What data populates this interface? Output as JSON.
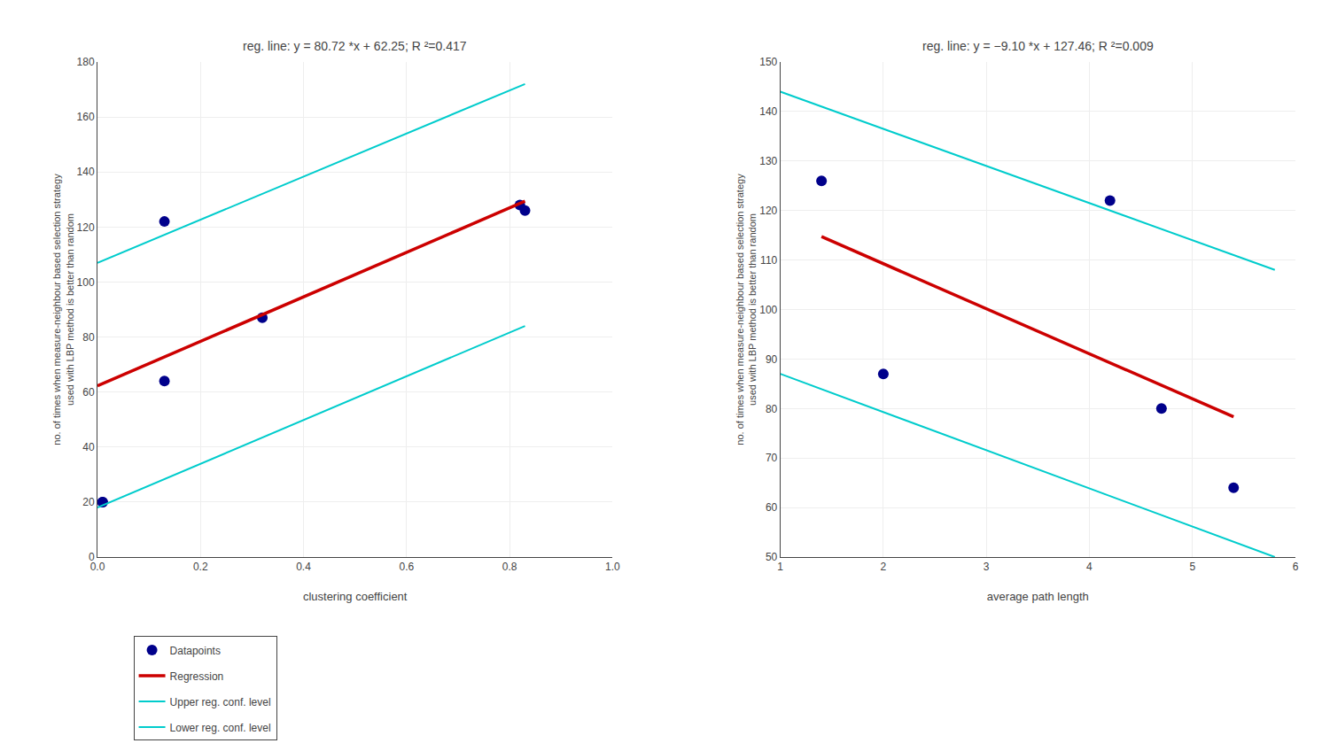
{
  "chart_data": [
    {
      "type": "scatter",
      "title": "reg. line: y = 80.72 *x + 62.25; R ²=0.417",
      "x_label": "clustering coefficient",
      "y_label": "no. of times when measure-neighbour based selection strategy\nused with LBP method is better than random",
      "xlim": [
        0,
        1
      ],
      "ylim": [
        0,
        180
      ],
      "xticks": [
        {
          "value": 0,
          "label": "0.0"
        },
        0.2,
        0.4,
        0.6,
        0.8,
        {
          "value": 1.0,
          "label": "1.0"
        }
      ],
      "yticks": [
        0,
        20,
        40,
        60,
        80,
        100,
        120,
        140,
        160,
        180
      ],
      "grid": true,
      "legend": "bottom",
      "series": [
        {
          "name": "Datapoints",
          "type": "scatter",
          "marker": "circle",
          "color": "#00008B",
          "x": [
            0.01,
            0.01,
            0.13,
            0.13,
            0.32,
            0.82,
            0.83
          ],
          "values": [
            20,
            20,
            122,
            64,
            87,
            128,
            126
          ]
        },
        {
          "name": "Regression",
          "type": "line",
          "color": "#CC0000",
          "x": [
            0.0,
            0.83
          ],
          "values": [
            62.25,
            129.37
          ]
        },
        {
          "name": "Upper reg. conf. level",
          "type": "line",
          "color": "#00CCCC",
          "x": [
            0.0,
            0.83
          ],
          "values": [
            107.0,
            172.0
          ]
        },
        {
          "name": "Lower reg. conf. level",
          "type": "line",
          "color": "#00CCCC",
          "x": [
            0.0,
            0.83
          ],
          "values": [
            18.0,
            84.0
          ]
        }
      ]
    },
    {
      "type": "scatter",
      "title": "reg. line: y = −9.10 *x + 127.46; R ²=0.009",
      "x_label": "average path length",
      "y_label": "no. of times when measure-neighbour based selection strategy\nused with LBP method is better than random",
      "xlim": [
        1,
        6
      ],
      "ylim": [
        50,
        150
      ],
      "xticks": [
        1,
        2,
        3,
        4,
        5,
        6
      ],
      "yticks": [
        50,
        60,
        70,
        80,
        90,
        100,
        110,
        120,
        130,
        140,
        150
      ],
      "grid": true,
      "legend": false,
      "series": [
        {
          "name": "Datapoints",
          "type": "scatter",
          "marker": "circle",
          "color": "#00008B",
          "x": [
            1.4,
            2.0,
            4.2,
            4.7,
            5.4
          ],
          "values": [
            126,
            87,
            122,
            80,
            64
          ]
        },
        {
          "name": "Regression",
          "type": "line",
          "color": "#CC0000",
          "x": [
            1.4,
            5.4
          ],
          "values": [
            114.72,
            78.32
          ]
        },
        {
          "name": "Upper reg. conf. level",
          "type": "line",
          "color": "#00CCCC",
          "x": [
            1.0,
            5.8
          ],
          "values": [
            144.0,
            108.0
          ]
        },
        {
          "name": "Lower reg. conf. level",
          "type": "line",
          "color": "#00CCCC",
          "x": [
            1.0,
            5.8
          ],
          "values": [
            87.0,
            50.0
          ]
        }
      ]
    }
  ]
}
